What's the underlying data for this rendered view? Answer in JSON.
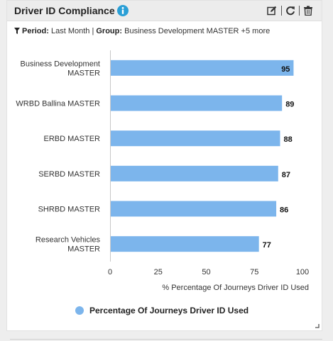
{
  "widget": {
    "title": "Driver ID Compliance",
    "filter": {
      "period_label": "Period:",
      "period_value": "Last Month",
      "separator": "|",
      "group_label": "Group:",
      "group_value": "Business Development MASTER +5 more"
    },
    "icons": {
      "info": "info-icon",
      "edit": "edit-icon",
      "refresh": "refresh-icon",
      "delete": "trash-icon",
      "filter": "filter-icon"
    },
    "colors": {
      "bar": "#7cb5ec",
      "info": "#2a9fd6"
    }
  },
  "chart_data": {
    "type": "bar",
    "orientation": "horizontal",
    "categories": [
      [
        "Business Development",
        "MASTER"
      ],
      [
        "WRBD Ballina MASTER"
      ],
      [
        "ERBD MASTER"
      ],
      [
        "SERBD MASTER"
      ],
      [
        "SHRBD MASTER"
      ],
      [
        "Research Vehicles",
        "MASTER"
      ]
    ],
    "series": [
      {
        "name": "Percentage Of Journeys Driver ID Used",
        "values": [
          95,
          89,
          88,
          87,
          86,
          77
        ]
      }
    ],
    "xlabel": "% Percentage Of Journeys Driver ID Used",
    "xlim": [
      0,
      100
    ],
    "xticks": [
      0,
      25,
      50,
      75,
      100
    ],
    "grid": false,
    "legend": "bottom-center",
    "data_labels": true
  }
}
